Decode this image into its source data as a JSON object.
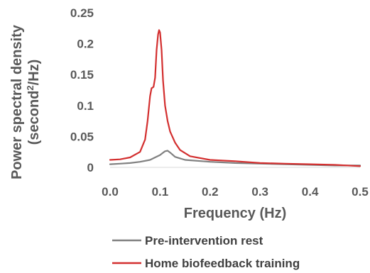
{
  "chart_data": {
    "type": "line",
    "title": "",
    "xlabel": "Frequency (Hz)",
    "ylabel_line1": "Power spectral density",
    "ylabel_line2_base": "(second",
    "ylabel_line2_sup": "2",
    "ylabel_line2_tail": "/Hz)",
    "xlim": [
      0,
      0.5
    ],
    "ylim": [
      0,
      0.25
    ],
    "x_ticks": [
      "0.0",
      "0.1",
      "0.2",
      "0.3",
      "0.4",
      "0.5"
    ],
    "y_ticks": [
      "0",
      "0.05",
      "0.1",
      "0.15",
      "0.2",
      "0.25"
    ],
    "grid": false,
    "legend_position": "bottom",
    "series": [
      {
        "name": "Pre-intervention rest",
        "color": "#808080",
        "points": [
          [
            0.0,
            0.005
          ],
          [
            0.02,
            0.006
          ],
          [
            0.04,
            0.007
          ],
          [
            0.06,
            0.009
          ],
          [
            0.08,
            0.012
          ],
          [
            0.09,
            0.016
          ],
          [
            0.1,
            0.02
          ],
          [
            0.105,
            0.023
          ],
          [
            0.11,
            0.026
          ],
          [
            0.115,
            0.027
          ],
          [
            0.12,
            0.024
          ],
          [
            0.13,
            0.017
          ],
          [
            0.15,
            0.012
          ],
          [
            0.2,
            0.009
          ],
          [
            0.25,
            0.007
          ],
          [
            0.3,
            0.006
          ],
          [
            0.35,
            0.005
          ],
          [
            0.4,
            0.004
          ],
          [
            0.45,
            0.003
          ],
          [
            0.5,
            0.003
          ]
        ]
      },
      {
        "name": "Home biofeedback training",
        "color": "#d32f2f",
        "points": [
          [
            0.0,
            0.012
          ],
          [
            0.02,
            0.013
          ],
          [
            0.04,
            0.016
          ],
          [
            0.06,
            0.025
          ],
          [
            0.07,
            0.045
          ],
          [
            0.075,
            0.075
          ],
          [
            0.08,
            0.115
          ],
          [
            0.083,
            0.128
          ],
          [
            0.087,
            0.13
          ],
          [
            0.09,
            0.145
          ],
          [
            0.093,
            0.19
          ],
          [
            0.096,
            0.215
          ],
          [
            0.098,
            0.222
          ],
          [
            0.1,
            0.218
          ],
          [
            0.103,
            0.19
          ],
          [
            0.106,
            0.14
          ],
          [
            0.11,
            0.1
          ],
          [
            0.115,
            0.075
          ],
          [
            0.12,
            0.058
          ],
          [
            0.13,
            0.04
          ],
          [
            0.14,
            0.028
          ],
          [
            0.16,
            0.018
          ],
          [
            0.2,
            0.012
          ],
          [
            0.25,
            0.01
          ],
          [
            0.3,
            0.007
          ],
          [
            0.35,
            0.006
          ],
          [
            0.4,
            0.005
          ],
          [
            0.45,
            0.004
          ],
          [
            0.5,
            0.002
          ]
        ]
      }
    ]
  }
}
